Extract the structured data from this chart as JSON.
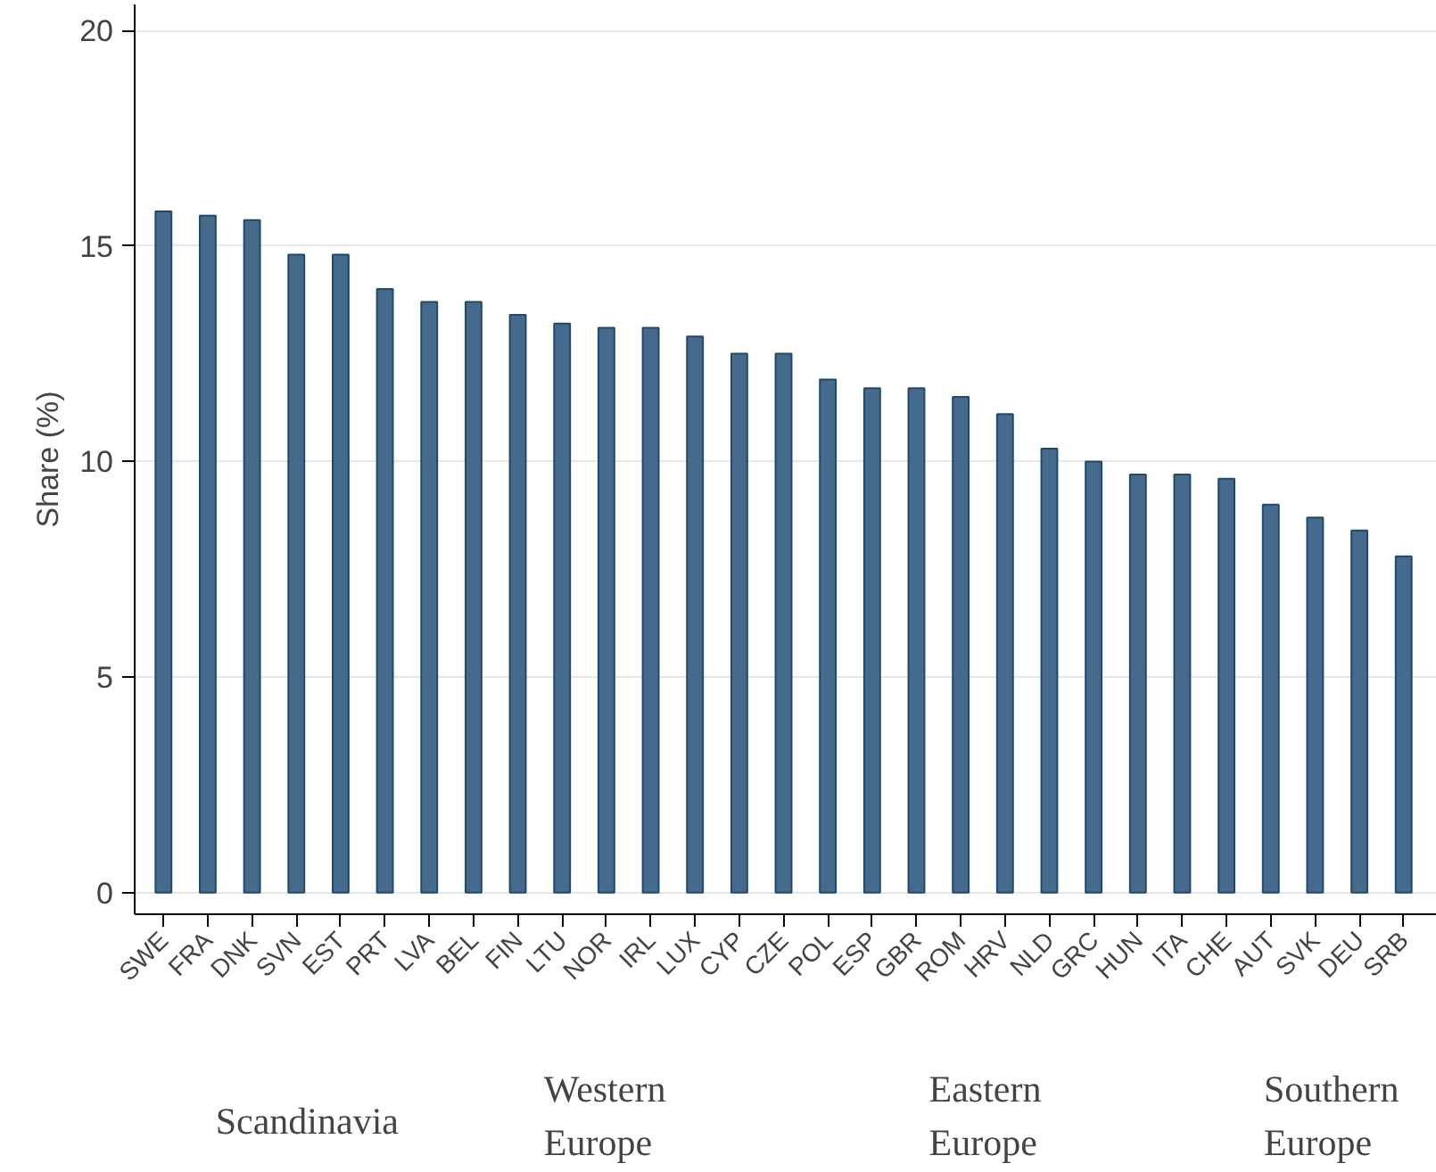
{
  "chart_data": {
    "type": "bar",
    "ylabel": "Share (%)",
    "categories": [
      "SWE",
      "FRA",
      "DNK",
      "SVN",
      "EST",
      "PRT",
      "LVA",
      "BEL",
      "FIN",
      "LTU",
      "NOR",
      "IRL",
      "LUX",
      "CYP",
      "CZE",
      "POL",
      "ESP",
      "GBR",
      "ROM",
      "HRV",
      "NLD",
      "GRC",
      "HUN",
      "ITA",
      "CHE",
      "AUT",
      "SVK",
      "DEU",
      "SRB"
    ],
    "values": [
      15.8,
      15.7,
      15.6,
      14.8,
      14.8,
      14.0,
      13.7,
      13.7,
      13.4,
      13.2,
      13.1,
      13.1,
      12.9,
      12.5,
      12.5,
      11.9,
      11.7,
      11.7,
      11.5,
      11.1,
      10.3,
      10.0,
      9.7,
      9.7,
      9.6,
      9.0,
      8.7,
      8.4,
      7.8
    ],
    "color": "#456a8c",
    "ylim": [
      -0.5,
      20.6
    ],
    "yticks": [
      0,
      5,
      10,
      15,
      20
    ],
    "grid": "y",
    "annotations": [
      "Scandinavia",
      "Western\nEurope",
      "Eastern\nEurope",
      "Southern\nEurope"
    ]
  }
}
